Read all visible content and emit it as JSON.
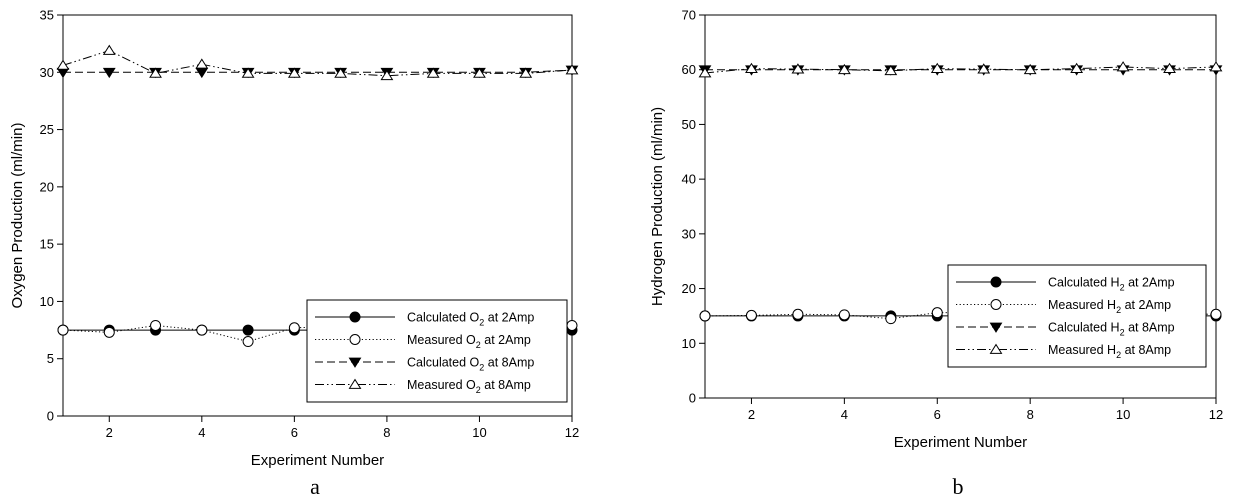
{
  "chart_data": [
    {
      "type": "line",
      "panel_label": "a",
      "xlabel": "Experiment Number",
      "ylabel": "Oxygen Production (ml/min)",
      "xlim": [
        1,
        12
      ],
      "ylim": [
        0,
        35
      ],
      "xticks": [
        2,
        4,
        6,
        8,
        10,
        12
      ],
      "yticks": [
        0,
        5,
        10,
        15,
        20,
        25,
        30,
        35
      ],
      "grid": false,
      "legend_position": "center-right",
      "x": [
        1,
        2,
        3,
        4,
        5,
        6,
        7,
        8,
        9,
        10,
        11,
        12
      ],
      "series": [
        {
          "name": "Calculated O2 at 2Amp",
          "name_base": "Calculated O",
          "name_sub": "2",
          "name_suffix": " at 2Amp",
          "line": "solid",
          "marker": "circle-filled",
          "values": [
            7.5,
            7.5,
            7.5,
            7.5,
            7.5,
            7.5,
            7.5,
            7.5,
            7.5,
            7.5,
            7.5,
            7.5
          ]
        },
        {
          "name": "Measured O2 at 2Amp",
          "name_base": "Measured  O",
          "name_sub": "2",
          "name_suffix": " at 2Amp",
          "line": "dotted",
          "marker": "circle-open",
          "values": [
            7.5,
            7.3,
            7.9,
            7.5,
            6.5,
            7.7,
            7.8,
            6.7,
            7.7,
            7.7,
            7.8,
            7.9
          ]
        },
        {
          "name": "Calculated O2 at 8Amp",
          "name_base": "Calculated O",
          "name_sub": "2",
          "name_suffix": " at 8Amp",
          "line": "dashed",
          "marker": "triangle-down-filled",
          "values": [
            30,
            30,
            30,
            30,
            30,
            30,
            30,
            30,
            30,
            30,
            30,
            30.2
          ]
        },
        {
          "name": "Measured O2 at 8Amp",
          "name_base": "Measured  O",
          "name_sub": "2",
          "name_suffix": " at 8Amp",
          "line": "dashdotdot",
          "marker": "triangle-up-open",
          "values": [
            30.6,
            31.9,
            29.9,
            30.7,
            29.9,
            29.9,
            29.9,
            29.7,
            29.9,
            29.9,
            29.9,
            30.2
          ]
        }
      ]
    },
    {
      "type": "line",
      "panel_label": "b",
      "xlabel": "Experiment Number",
      "ylabel": "Hydrogen Production (ml/min)",
      "xlim": [
        1,
        12
      ],
      "ylim": [
        0,
        70
      ],
      "xticks": [
        2,
        4,
        6,
        8,
        10,
        12
      ],
      "yticks": [
        0,
        10,
        20,
        30,
        40,
        50,
        60,
        70
      ],
      "grid": false,
      "legend_position": "center-right",
      "x": [
        1,
        2,
        3,
        4,
        5,
        6,
        7,
        8,
        9,
        10,
        11,
        12
      ],
      "series": [
        {
          "name": "Calculated H2 at 2Amp",
          "name_base": "Calculated H",
          "name_sub": "2",
          "name_suffix": " at 2Amp",
          "line": "solid",
          "marker": "circle-filled",
          "values": [
            15,
            15,
            15,
            15,
            15,
            15,
            15,
            15,
            15,
            15,
            15,
            15
          ]
        },
        {
          "name": "Measured H2 at 2Amp",
          "name_base": "Measured  H",
          "name_sub": "2",
          "name_suffix": " at 2Amp",
          "line": "dotted",
          "marker": "circle-open",
          "values": [
            15,
            15.1,
            15.3,
            15.2,
            14.5,
            15.6,
            15.6,
            13.9,
            15.6,
            15.5,
            15.4,
            15.3
          ]
        },
        {
          "name": "Calculated H2 at 8Amp",
          "name_base": "Calculated H",
          "name_sub": "2",
          "name_suffix": " at 8Amp",
          "line": "dashed",
          "marker": "triangle-down-filled",
          "values": [
            60,
            60,
            60,
            60,
            60,
            60,
            60,
            60,
            60,
            60,
            60,
            60
          ]
        },
        {
          "name": "Measured H2 at 8Amp",
          "name_base": "Measured  H",
          "name_sub": "2",
          "name_suffix": " at 8Amp",
          "line": "dashdotdot",
          "marker": "triangle-up-open",
          "values": [
            59.4,
            60.2,
            60.1,
            60.0,
            59.8,
            60.2,
            60.1,
            60.0,
            60.2,
            60.5,
            60.2,
            60.5
          ]
        }
      ]
    }
  ]
}
